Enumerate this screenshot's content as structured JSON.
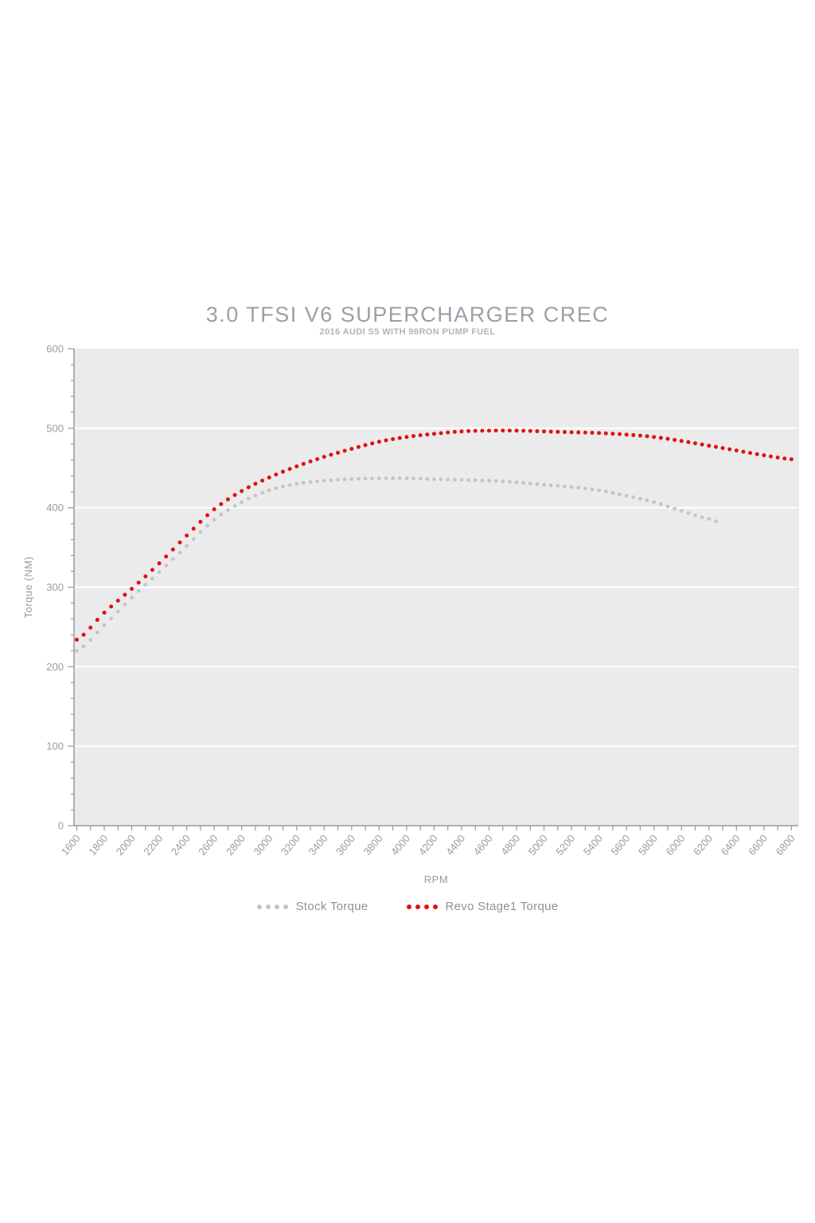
{
  "page": {
    "background_color": "#ffffff"
  },
  "chart": {
    "title": "3.0 TFSI V6 SUPERCHARGER CREC",
    "subtitle": "2016 AUDI S5 WITH 98RON PUMP FUEL"
  },
  "chart_data": {
    "type": "line",
    "marker_style": "dotted",
    "title": "3.0 TFSI V6 SUPERCHARGER CREC",
    "subtitle": "2016 AUDI S5 WITH 98RON PUMP FUEL",
    "xlabel": "RPM",
    "ylabel": "Torque (NM)",
    "xlim": [
      1580,
      6850
    ],
    "ylim": [
      0,
      600
    ],
    "x_major_ticks": [
      1600,
      1800,
      2000,
      2200,
      2400,
      2600,
      2800,
      3000,
      3200,
      3400,
      3600,
      3800,
      4000,
      4200,
      4400,
      4600,
      4800,
      5000,
      5200,
      5400,
      5600,
      5800,
      6000,
      6200,
      6400,
      6600,
      6800
    ],
    "x_minor_step": 100,
    "y_major_ticks": [
      0,
      100,
      200,
      300,
      400,
      500,
      600
    ],
    "y_minor_step": 20,
    "grid": "horizontal",
    "legend_position": "bottom",
    "dot_step_rpm": 50,
    "series": [
      {
        "name": "Stock Torque",
        "color": "#c4c4c4",
        "dot_radius": 2.3,
        "x": [
          1600,
          1800,
          2000,
          2200,
          2400,
          2600,
          2800,
          3000,
          3200,
          3400,
          3600,
          3800,
          4000,
          4200,
          4400,
          4600,
          4800,
          5000,
          5200,
          5400,
          5600,
          5800,
          6000,
          6200,
          6250
        ],
        "values": [
          220,
          252,
          287,
          319,
          352,
          385,
          407,
          422,
          430,
          434,
          436,
          437,
          437,
          436,
          435,
          434,
          432,
          429,
          426,
          422,
          415,
          407,
          396,
          386,
          383
        ]
      },
      {
        "name": "Revo Stage1 Torque",
        "color": "#e01111",
        "dot_radius": 2.5,
        "x": [
          1600,
          1800,
          2000,
          2200,
          2400,
          2600,
          2800,
          3000,
          3200,
          3400,
          3600,
          3800,
          4000,
          4200,
          4400,
          4600,
          4800,
          5000,
          5200,
          5400,
          5600,
          5800,
          6000,
          6200,
          6400,
          6600,
          6800
        ],
        "values": [
          234,
          268,
          298,
          330,
          365,
          398,
          421,
          438,
          452,
          464,
          474,
          483,
          489,
          493,
          496,
          497,
          497,
          496,
          495,
          494,
          492,
          489,
          484,
          478,
          472,
          466,
          461
        ]
      }
    ],
    "style": {
      "plot_background": "#ebebeb",
      "gridline_color": "#ffffff",
      "axis_color": "#9a9a9a",
      "tick_label_color": "#9c9c9c",
      "axis_title_color": "#9c9c9c",
      "plot_right_border": "#e0e0e0"
    }
  }
}
